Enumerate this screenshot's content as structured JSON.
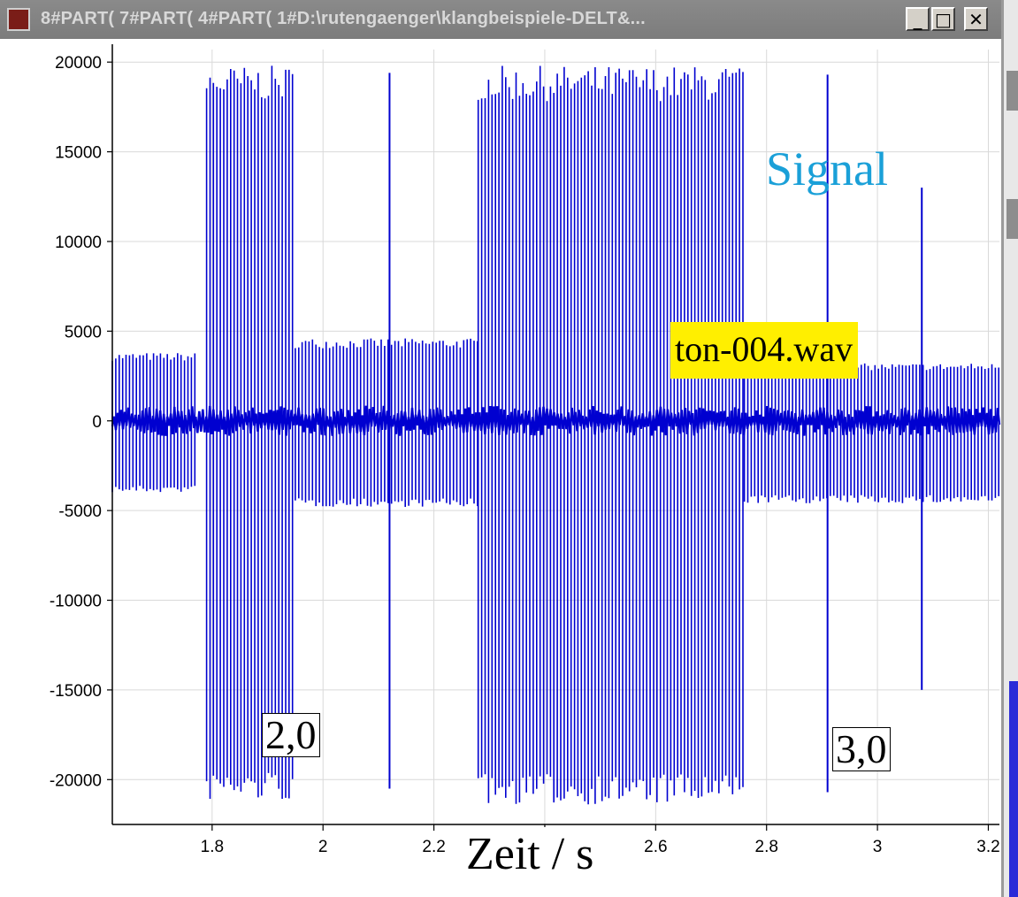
{
  "window": {
    "title": "8#PART( 7#PART( 4#PART( 1#D:\\rutengaenger\\klangbeispiele-DELT&...",
    "controls": {
      "minimize": "_",
      "maximize": "□",
      "close": "✕"
    }
  },
  "annotations": {
    "signal_label": "Signal",
    "file_label": "ton-004.wav",
    "marker_2": "2,0",
    "marker_3": "3,0",
    "x_axis_label": "Zeit / s"
  },
  "colors": {
    "signal": "#0000d0",
    "signal_label": "#1aa0d8",
    "file_highlight": "#ffef00",
    "grid": "#d9d9d9"
  },
  "chart_data": {
    "type": "line",
    "title": "",
    "xlabel": "Zeit / s",
    "ylabel": "",
    "xlim": [
      1.62,
      3.22
    ],
    "ylim": [
      -22500,
      20700
    ],
    "x_ticks": [
      1.8,
      2,
      2.2,
      2.4,
      2.6,
      2.8,
      3,
      3.2
    ],
    "x_tick_labels": [
      "1.8",
      "2",
      "2.2",
      "2.4",
      "2.6",
      "2.8",
      "3",
      "3.2"
    ],
    "y_ticks": [
      20000,
      15000,
      10000,
      5000,
      0,
      -5000,
      -10000,
      -15000,
      -20000
    ],
    "y_tick_labels": [
      "20000",
      "15000",
      "10000",
      "5000",
      "0",
      "-5000",
      "-10000",
      "-15000",
      "-20000"
    ],
    "grid": true,
    "series": [
      {
        "style": "vertical impulse lines",
        "baseline_noise_amplitude": 700,
        "regions": [
          {
            "x_start": 1.62,
            "x_end": 1.77,
            "peak_positive": 3800,
            "peak_negative": -4000
          },
          {
            "x_start": 1.79,
            "x_end": 1.95,
            "peak_positive": 19800,
            "peak_negative": -21200
          },
          {
            "x_start": 1.95,
            "x_end": 2.28,
            "peak_positive": 4600,
            "peak_negative": -4800
          },
          {
            "x_start": 2.28,
            "x_end": 2.76,
            "peak_positive": 19800,
            "peak_negative": -21400
          },
          {
            "x_start": 2.76,
            "x_end": 3.22,
            "peak_positive": 3200,
            "peak_negative": -4600
          }
        ],
        "isolated_spikes": [
          {
            "x": 2.12,
            "positive": 19400,
            "negative": -20500
          },
          {
            "x": 2.91,
            "positive": 19300,
            "negative": -20700
          },
          {
            "x": 3.08,
            "positive": 13000,
            "negative": -15000
          }
        ]
      }
    ]
  }
}
